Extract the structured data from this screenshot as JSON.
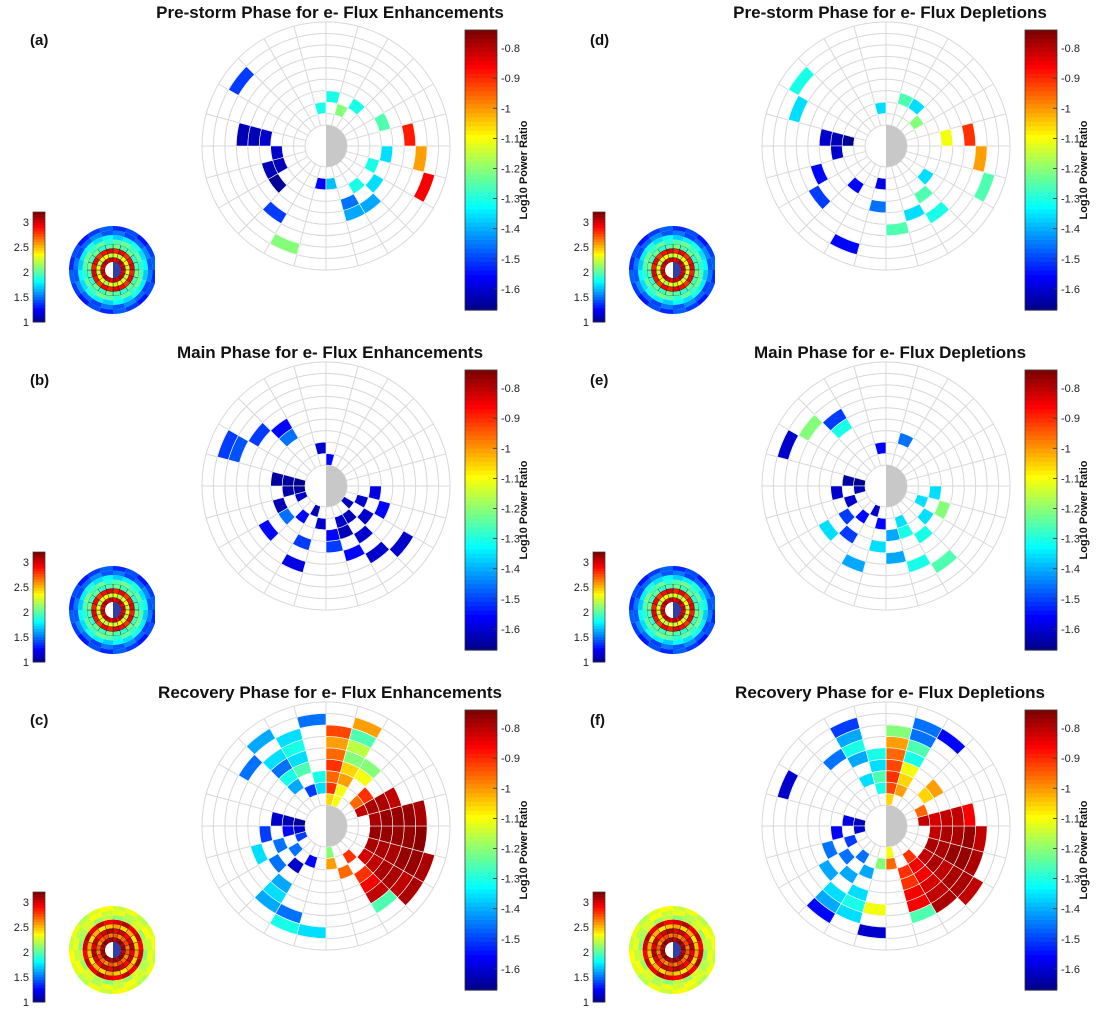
{
  "panels": [
    {
      "letter": "(a)",
      "title": "Pre-storm Phase for e- Flux Enhancements",
      "pattern": "pre_enh"
    },
    {
      "letter": "(b)",
      "title": "Main Phase for e- Flux Enhancements",
      "pattern": "main_enh"
    },
    {
      "letter": "(c)",
      "title": "Recovery Phase for e- Flux Enhancements",
      "pattern": "rec_enh"
    },
    {
      "letter": "(d)",
      "title": "Pre-storm Phase for e- Flux Depletions",
      "pattern": "pre_dep"
    },
    {
      "letter": "(e)",
      "title": "Main Phase for e- Flux Depletions",
      "pattern": "main_dep"
    },
    {
      "letter": "(f)",
      "title": "Recovery Phase for e- Flux Depletions",
      "pattern": "rec_dep"
    }
  ],
  "colorbar": {
    "label": "Log10 Power Ratio",
    "ticks": [
      "-0.8",
      "-0.9",
      "-1",
      "-1.1",
      "-1.2",
      "-1.3",
      "-1.4",
      "-1.5",
      "-1.6"
    ],
    "tick_values": [
      -0.8,
      -0.9,
      -1,
      -1.1,
      -1.2,
      -1.3,
      -1.4,
      -1.5,
      -1.6
    ],
    "range": [
      -1.67,
      -0.74
    ]
  },
  "inset_colorbar": {
    "ticks": [
      "3",
      "2.5",
      "2",
      "1.5",
      "1"
    ],
    "tick_values": [
      3,
      2.5,
      2,
      1.5,
      1
    ],
    "range": [
      1,
      3.2
    ]
  },
  "colors": {
    "grid": "#d8d8d8",
    "center": "#c8c8c8",
    "inset_cell_border": "#1a1a1a"
  },
  "chart_data": {
    "type": "heatmap",
    "projection": "polar",
    "sectors": 24,
    "rings": 9,
    "value_unit": "Log10 Power Ratio",
    "panels": {
      "pre_enh": [
        [
          4,
          18,
          -1.6
        ],
        [
          5,
          18,
          -1.62
        ],
        [
          6,
          18,
          -1.62
        ],
        [
          3,
          17,
          -1.6
        ],
        [
          3,
          16,
          -1.62
        ],
        [
          4,
          16,
          -1.62
        ],
        [
          4,
          15,
          -1.65
        ],
        [
          6,
          14,
          -1.5
        ],
        [
          8,
          13,
          -1.2
        ],
        [
          2,
          12,
          -1.55
        ],
        [
          2,
          11,
          -1.38
        ],
        [
          4,
          10,
          -1.45
        ],
        [
          5,
          10,
          -1.4
        ],
        [
          5,
          9,
          -1.4
        ],
        [
          3,
          9,
          -1.3
        ],
        [
          4,
          8,
          -1.35
        ],
        [
          3,
          7,
          -1.3
        ],
        [
          8,
          7,
          -0.85
        ],
        [
          7,
          6,
          -1.0
        ],
        [
          4,
          6,
          -1.35
        ],
        [
          6,
          5,
          -0.88
        ],
        [
          4,
          4,
          -1.25
        ],
        [
          2,
          23,
          -1.3
        ],
        [
          8,
          20,
          -1.5
        ],
        [
          3,
          0,
          -1.3
        ],
        [
          3,
          2,
          -1.3
        ],
        [
          2,
          1,
          -1.2
        ]
      ],
      "pre_dep": [
        [
          2,
          18,
          -1.65
        ],
        [
          3,
          18,
          -1.62
        ],
        [
          4,
          18,
          -1.6
        ],
        [
          3,
          17,
          -1.6
        ],
        [
          5,
          16,
          -1.55
        ],
        [
          6,
          15,
          -1.5
        ],
        [
          3,
          14,
          -1.55
        ],
        [
          8,
          13,
          -1.55
        ],
        [
          2,
          12,
          -1.58
        ],
        [
          4,
          12,
          -1.45
        ],
        [
          6,
          11,
          -1.25
        ],
        [
          5,
          10,
          -1.35
        ],
        [
          4,
          9,
          -1.25
        ],
        [
          6,
          9,
          -1.3
        ],
        [
          3,
          8,
          -1.35
        ],
        [
          8,
          7,
          -1.25
        ],
        [
          7,
          6,
          -1.0
        ],
        [
          4,
          5,
          -1.1
        ],
        [
          6,
          5,
          -0.9
        ],
        [
          2,
          3,
          -1.2
        ],
        [
          2,
          23,
          -1.35
        ],
        [
          8,
          20,
          -1.3
        ],
        [
          7,
          19,
          -1.35
        ],
        [
          3,
          1,
          -1.25
        ],
        [
          3,
          2,
          -1.35
        ]
      ],
      "main_enh": [
        [
          1,
          18,
          -1.66
        ],
        [
          2,
          18,
          -1.64
        ],
        [
          3,
          18,
          -1.64
        ],
        [
          1,
          17,
          -1.65
        ],
        [
          2,
          17,
          -1.63
        ],
        [
          3,
          16,
          -1.62
        ],
        [
          1,
          16,
          -1.6
        ],
        [
          3,
          15,
          -1.45
        ],
        [
          5,
          15,
          -1.55
        ],
        [
          2,
          14,
          -1.55
        ],
        [
          6,
          13,
          -1.58
        ],
        [
          4,
          13,
          -1.5
        ],
        [
          1,
          13,
          -1.62
        ],
        [
          2,
          12,
          -1.6
        ],
        [
          3,
          11,
          -1.55
        ],
        [
          4,
          11,
          -1.5
        ],
        [
          5,
          10,
          -1.55
        ],
        [
          6,
          9,
          -1.6
        ],
        [
          7,
          8,
          -1.6
        ],
        [
          2,
          10,
          -1.6
        ],
        [
          3,
          10,
          -1.62
        ],
        [
          4,
          9,
          -1.6
        ],
        [
          2,
          9,
          -1.62
        ],
        [
          3,
          8,
          -1.6
        ],
        [
          1,
          8,
          -1.62
        ],
        [
          2,
          7,
          -1.6
        ],
        [
          4,
          7,
          -1.55
        ],
        [
          3,
          6,
          -1.58
        ],
        [
          1,
          0,
          -1.55
        ],
        [
          2,
          23,
          -1.6
        ],
        [
          4,
          21,
          -1.45
        ],
        [
          5,
          21,
          -1.55
        ],
        [
          6,
          20,
          -1.5
        ],
        [
          7,
          19,
          -1.48
        ],
        [
          8,
          19,
          -1.5
        ]
      ],
      "main_dep": [
        [
          1,
          18,
          -1.66
        ],
        [
          2,
          18,
          -1.64
        ],
        [
          3,
          17,
          -1.6
        ],
        [
          1,
          17,
          -1.62
        ],
        [
          2,
          16,
          -1.6
        ],
        [
          3,
          15,
          -1.5
        ],
        [
          5,
          15,
          -1.35
        ],
        [
          4,
          14,
          -1.5
        ],
        [
          2,
          14,
          -1.55
        ],
        [
          6,
          13,
          -1.4
        ],
        [
          1,
          13,
          -1.6
        ],
        [
          2,
          12,
          -1.55
        ],
        [
          4,
          12,
          -1.35
        ],
        [
          3,
          11,
          -1.4
        ],
        [
          5,
          11,
          -1.4
        ],
        [
          6,
          10,
          -1.3
        ],
        [
          7,
          9,
          -1.25
        ],
        [
          2,
          10,
          -1.35
        ],
        [
          3,
          10,
          -1.3
        ],
        [
          4,
          9,
          -1.3
        ],
        [
          3,
          8,
          -1.35
        ],
        [
          2,
          7,
          -1.35
        ],
        [
          4,
          7,
          -1.2
        ],
        [
          3,
          6,
          -1.35
        ],
        [
          2,
          23,
          -1.55
        ],
        [
          3,
          1,
          -1.45
        ],
        [
          5,
          21,
          -1.3
        ],
        [
          6,
          21,
          -1.5
        ],
        [
          7,
          20,
          -1.2
        ],
        [
          8,
          19,
          -1.6
        ]
      ],
      "rec_enh": [
        [
          1,
          18,
          -1.65
        ],
        [
          2,
          18,
          -1.62
        ],
        [
          3,
          18,
          -1.6
        ],
        [
          4,
          17,
          -1.5
        ],
        [
          1,
          17,
          -1.6
        ],
        [
          2,
          17,
          -1.55
        ],
        [
          3,
          16,
          -1.45
        ],
        [
          5,
          16,
          -1.35
        ],
        [
          1,
          16,
          -1.5
        ],
        [
          2,
          15,
          -1.45
        ],
        [
          4,
          15,
          -1.45
        ],
        [
          6,
          14,
          -1.35
        ],
        [
          7,
          14,
          -1.4
        ],
        [
          8,
          13,
          -1.3
        ],
        [
          3,
          14,
          -1.6
        ],
        [
          5,
          14,
          -1.4
        ],
        [
          7,
          13,
          -1.45
        ],
        [
          8,
          12,
          -1.35
        ],
        [
          2,
          13,
          -1.55
        ],
        [
          7,
          9,
          -1.25
        ],
        [
          1,
          11,
          -1.2
        ],
        [
          2,
          11,
          -1.0
        ],
        [
          3,
          10,
          -0.95
        ],
        [
          4,
          9,
          -0.9
        ],
        [
          5,
          9,
          -0.85
        ],
        [
          6,
          9,
          -0.8
        ],
        [
          7,
          8,
          -0.8
        ],
        [
          8,
          8,
          -0.78
        ],
        [
          2,
          9,
          -0.9
        ],
        [
          3,
          8,
          -0.82
        ],
        [
          4,
          8,
          -0.8
        ],
        [
          5,
          8,
          -0.78
        ],
        [
          6,
          8,
          -0.78
        ],
        [
          3,
          7,
          -0.78
        ],
        [
          4,
          7,
          -0.78
        ],
        [
          5,
          7,
          -0.78
        ],
        [
          6,
          7,
          -0.76
        ],
        [
          7,
          7,
          -0.76
        ],
        [
          8,
          7,
          -0.78
        ],
        [
          3,
          6,
          -0.76
        ],
        [
          4,
          6,
          -0.76
        ],
        [
          5,
          6,
          -0.76
        ],
        [
          6,
          6,
          -0.76
        ],
        [
          7,
          6,
          -0.75
        ],
        [
          3,
          5,
          -0.78
        ],
        [
          4,
          5,
          -0.76
        ],
        [
          5,
          5,
          -0.76
        ],
        [
          6,
          5,
          -0.76
        ],
        [
          7,
          5,
          -0.78
        ],
        [
          2,
          4,
          -0.8
        ],
        [
          3,
          4,
          -0.78
        ],
        [
          4,
          4,
          -0.78
        ],
        [
          5,
          4,
          -0.8
        ],
        [
          2,
          3,
          -0.95
        ],
        [
          3,
          3,
          -0.9
        ],
        [
          4,
          2,
          -1.1
        ],
        [
          5,
          2,
          -1.2
        ],
        [
          1,
          1,
          -1.1
        ],
        [
          1,
          0,
          -1.05
        ],
        [
          2,
          0,
          -0.9
        ],
        [
          3,
          0,
          -0.95
        ],
        [
          4,
          0,
          -0.9
        ],
        [
          5,
          0,
          -0.95
        ],
        [
          6,
          0,
          -1.0
        ],
        [
          7,
          0,
          -0.92
        ],
        [
          8,
          1,
          -1.0
        ],
        [
          2,
          1,
          -1.1
        ],
        [
          3,
          1,
          -1.0
        ],
        [
          4,
          1,
          -1.05
        ],
        [
          5,
          1,
          -1.2
        ],
        [
          6,
          1,
          -1.15
        ],
        [
          7,
          1,
          -1.25
        ],
        [
          2,
          23,
          -1.35
        ],
        [
          3,
          23,
          -1.3
        ],
        [
          4,
          22,
          -1.25
        ],
        [
          5,
          22,
          -1.35
        ],
        [
          6,
          22,
          -1.3
        ],
        [
          7,
          22,
          -1.35
        ],
        [
          8,
          23,
          -1.45
        ],
        [
          3,
          21,
          -1.4
        ],
        [
          4,
          21,
          -1.3
        ],
        [
          5,
          21,
          -1.45
        ],
        [
          6,
          21,
          -1.35
        ],
        [
          2,
          22,
          -1.5
        ],
        [
          7,
          20,
          -1.45
        ],
        [
          8,
          21,
          -1.4
        ]
      ],
      "rec_dep": [
        [
          1,
          18,
          -1.62
        ],
        [
          2,
          18,
          -1.58
        ],
        [
          3,
          17,
          -1.55
        ],
        [
          1,
          17,
          -1.6
        ],
        [
          2,
          16,
          -1.5
        ],
        [
          4,
          16,
          -1.45
        ],
        [
          5,
          15,
          -1.4
        ],
        [
          3,
          15,
          -1.45
        ],
        [
          6,
          14,
          -1.35
        ],
        [
          7,
          14,
          -1.4
        ],
        [
          8,
          14,
          -1.55
        ],
        [
          2,
          14,
          -1.45
        ],
        [
          3,
          13,
          -1.4
        ],
        [
          4,
          14,
          -1.4
        ],
        [
          5,
          13,
          -1.35
        ],
        [
          6,
          13,
          -1.3
        ],
        [
          7,
          13,
          -1.35
        ],
        [
          8,
          12,
          -1.6
        ],
        [
          2,
          12,
          -1.2
        ],
        [
          6,
          12,
          -1.1
        ],
        [
          7,
          10,
          -1.25
        ],
        [
          1,
          11,
          -1.1
        ],
        [
          2,
          11,
          -0.95
        ],
        [
          3,
          10,
          -0.9
        ],
        [
          4,
          10,
          -0.9
        ],
        [
          5,
          10,
          -0.85
        ],
        [
          6,
          10,
          -0.85
        ],
        [
          2,
          9,
          -0.9
        ],
        [
          3,
          9,
          -0.85
        ],
        [
          4,
          9,
          -0.85
        ],
        [
          5,
          9,
          -0.82
        ],
        [
          6,
          9,
          -0.8
        ],
        [
          7,
          9,
          -0.78
        ],
        [
          8,
          8,
          -0.8
        ],
        [
          3,
          8,
          -0.8
        ],
        [
          4,
          8,
          -0.78
        ],
        [
          5,
          8,
          -0.8
        ],
        [
          6,
          8,
          -0.78
        ],
        [
          7,
          8,
          -0.78
        ],
        [
          3,
          7,
          -0.78
        ],
        [
          4,
          7,
          -0.78
        ],
        [
          5,
          7,
          -0.76
        ],
        [
          6,
          7,
          -0.76
        ],
        [
          7,
          7,
          -0.78
        ],
        [
          3,
          6,
          -0.8
        ],
        [
          4,
          6,
          -0.78
        ],
        [
          5,
          6,
          -0.78
        ],
        [
          6,
          6,
          -0.76
        ],
        [
          7,
          6,
          -0.8
        ],
        [
          2,
          5,
          -0.8
        ],
        [
          3,
          5,
          -0.82
        ],
        [
          4,
          5,
          -0.8
        ],
        [
          5,
          5,
          -0.8
        ],
        [
          6,
          5,
          -0.85
        ],
        [
          2,
          4,
          -0.95
        ],
        [
          3,
          3,
          -1.05
        ],
        [
          4,
          3,
          -1.0
        ],
        [
          1,
          0,
          -1.05
        ],
        [
          2,
          0,
          -0.92
        ],
        [
          3,
          0,
          -0.9
        ],
        [
          4,
          0,
          -0.92
        ],
        [
          5,
          0,
          -0.95
        ],
        [
          6,
          0,
          -1.0
        ],
        [
          7,
          0,
          -1.2
        ],
        [
          8,
          1,
          -1.45
        ],
        [
          2,
          1,
          -1.0
        ],
        [
          3,
          1,
          -1.05
        ],
        [
          4,
          1,
          -1.1
        ],
        [
          5,
          1,
          -1.3
        ],
        [
          6,
          1,
          -1.25
        ],
        [
          7,
          1,
          -1.45
        ],
        [
          8,
          2,
          -1.55
        ],
        [
          2,
          23,
          -1.3
        ],
        [
          3,
          23,
          -1.25
        ],
        [
          4,
          23,
          -1.35
        ],
        [
          5,
          23,
          -1.3
        ],
        [
          6,
          22,
          -1.3
        ],
        [
          7,
          22,
          -1.4
        ],
        [
          8,
          22,
          -1.5
        ],
        [
          3,
          22,
          -1.35
        ],
        [
          5,
          22,
          -1.4
        ],
        [
          6,
          21,
          -1.45
        ],
        [
          8,
          19,
          -1.6
        ]
      ]
    }
  }
}
